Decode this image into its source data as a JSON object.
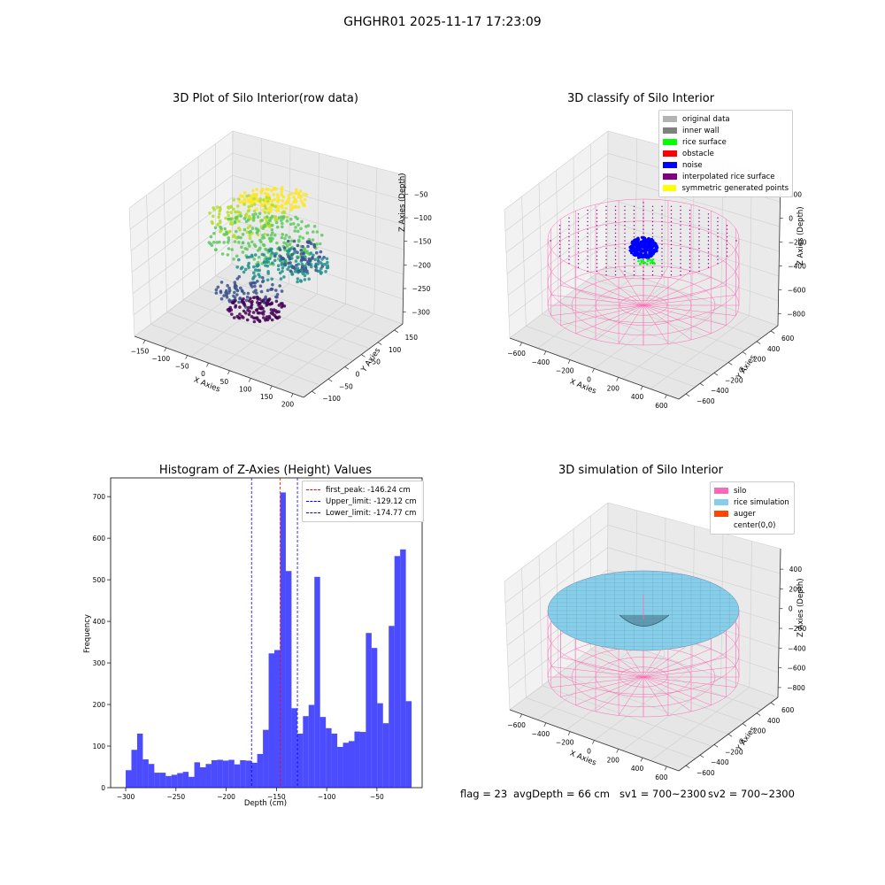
{
  "suptitle": "GHGHR01 2025-11-17 17:23:09",
  "panels": {
    "raw": {
      "title": "3D Plot of Silo Interior(row data)",
      "xlabel": "X Axies",
      "ylabel": "Y Axies",
      "zlabel": "Z Axies (Depth)",
      "xticks": [
        "−150",
        "−100",
        "−50",
        "0",
        "50",
        "100",
        "150",
        "200"
      ],
      "yticks": [
        "−100",
        "−50",
        "0",
        "50",
        "100",
        "150"
      ],
      "zticks": [
        "−50",
        "−100",
        "−150",
        "−200",
        "−250",
        "−300"
      ]
    },
    "classify": {
      "title": "3D classify of Silo Interior",
      "xlabel": "X Axies",
      "ylabel": "Y Axies",
      "zlabel": "Z Axies (Depth)",
      "xticks": [
        "−600",
        "−400",
        "−200",
        "0",
        "200",
        "400",
        "600"
      ],
      "yticks": [
        "−600",
        "−400",
        "−200",
        "0",
        "200",
        "400",
        "600"
      ],
      "zticks": [
        "200",
        "0",
        "−200",
        "−400",
        "−600",
        "−800"
      ],
      "legend": [
        {
          "label": "original data",
          "color": "#b3b3b3"
        },
        {
          "label": "inner wall",
          "color": "#808080"
        },
        {
          "label": "rice surface",
          "color": "#00ff00"
        },
        {
          "label": "obstacle",
          "color": "#ff0000"
        },
        {
          "label": "noise",
          "color": "#0000ff"
        },
        {
          "label": "interpolated rice surface",
          "color": "#800080"
        },
        {
          "label": "symmetric generated points",
          "color": "#ffff00"
        }
      ]
    },
    "histogram": {
      "title": "Histogram of Z-Axies (Height) Values",
      "xlabel": "Depth (cm)",
      "ylabel": "Frequency",
      "legend": [
        {
          "label": "first_peak: -146.24 cm",
          "color": "#ff0000"
        },
        {
          "label": "Upper_limit: -129.12 cm",
          "color": "#0000ff"
        },
        {
          "label": "Lower_limit: -174.77 cm",
          "color": "#0000ff"
        }
      ]
    },
    "simulation": {
      "title": "3D simulation of Silo Interior",
      "xlabel": "X Axies",
      "ylabel": "Y Axies",
      "zlabel": "Z Axies (Depth)",
      "xticks": [
        "−600",
        "−400",
        "−200",
        "0",
        "200",
        "400",
        "600"
      ],
      "yticks": [
        "−600",
        "−400",
        "−200",
        "0",
        "200",
        "400",
        "600"
      ],
      "zticks": [
        "400",
        "200",
        "0",
        "−200",
        "−400",
        "−600",
        "−800"
      ],
      "legend": [
        {
          "label": "silo",
          "color": "#ff69b4"
        },
        {
          "label": "rice simulation",
          "color": "#87ceeb"
        },
        {
          "label": "auger",
          "color": "#ff4500"
        },
        {
          "label": "center(0,0)",
          "color": "#ffffff"
        }
      ]
    }
  },
  "status": {
    "flag": "flag = 23",
    "avg_depth": "avgDepth = 66 cm",
    "sv1": "sv1 = 700~2300",
    "sv2": "sv2 = 700~2300"
  },
  "chart_data": [
    {
      "type": "scatter",
      "title": "3D Plot of Silo Interior(row data)",
      "xlabel": "X Axies",
      "ylabel": "Y Axies",
      "zlabel": "Z Axies (Depth)",
      "xlim": [
        -175,
        210
      ],
      "ylim": [
        -125,
        160
      ],
      "zlim": [
        -330,
        -30
      ],
      "colormap": "viridis"
    },
    {
      "type": "scatter",
      "title": "3D classify of Silo Interior",
      "xlabel": "X Axies",
      "ylabel": "Y Axies",
      "zlabel": "Z Axies (Depth)",
      "xlim": [
        -700,
        700
      ],
      "ylim": [
        -700,
        700
      ],
      "zlim": [
        -900,
        300
      ],
      "legend_position": "upper-right"
    },
    {
      "type": "bar",
      "title": "Histogram of Z-Axies (Height) Values",
      "xlabel": "Depth (cm)",
      "ylabel": "Frequency",
      "xlim": [
        -315,
        -5
      ],
      "ylim": [
        0,
        745
      ],
      "bin_start": -300,
      "bin_width": 5.69,
      "values": [
        42,
        91,
        130,
        68,
        57,
        36,
        36,
        28,
        31,
        35,
        38,
        26,
        61,
        49,
        57,
        66,
        67,
        65,
        67,
        56,
        66,
        65,
        60,
        81,
        139,
        323,
        331,
        710,
        521,
        191,
        130,
        172,
        199,
        507,
        170,
        143,
        130,
        98,
        108,
        112,
        135,
        134,
        372,
        336,
        203,
        155,
        389,
        557,
        573,
        208
      ],
      "color": "#0000ff",
      "vlines": [
        {
          "x": -146.24,
          "color": "#ff0000",
          "label": "first_peak: -146.24 cm"
        },
        {
          "x": -129.12,
          "color": "#0000ff",
          "label": "Upper_limit: -129.12 cm"
        },
        {
          "x": -174.77,
          "color": "#0000ff",
          "label": "Lower_limit: -174.77 cm"
        }
      ],
      "legend_position": "top-right"
    },
    {
      "type": "scatter",
      "title": "3D simulation of Silo Interior",
      "xlabel": "X Axies",
      "ylabel": "Y Axies",
      "zlabel": "Z Axies (Depth)",
      "xlim": [
        -700,
        700
      ],
      "ylim": [
        -700,
        700
      ],
      "zlim": [
        -900,
        500
      ],
      "legend_position": "upper-right"
    }
  ]
}
